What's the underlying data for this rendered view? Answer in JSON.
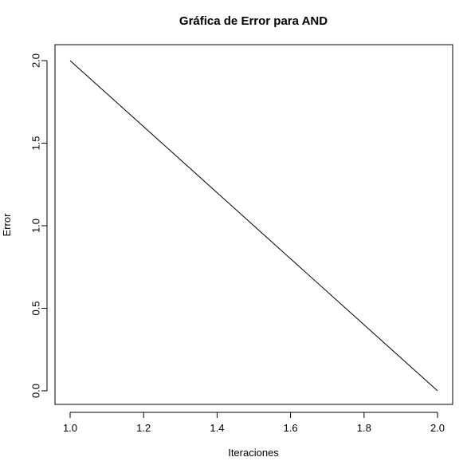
{
  "chart_data": {
    "type": "line",
    "title": "Gráfica de Error para AND",
    "xlabel": "Iteraciones",
    "ylabel": "Error",
    "x": [
      1,
      2
    ],
    "series": [
      {
        "values": [
          2,
          0
        ],
        "color": "#000000"
      }
    ],
    "xlim": [
      1,
      2
    ],
    "ylim": [
      0,
      2
    ],
    "x_ticks": [
      1.0,
      1.2,
      1.4,
      1.6,
      1.8,
      2.0
    ],
    "x_tick_labels": [
      "1.0",
      "1.2",
      "1.4",
      "1.6",
      "1.8",
      "2.0"
    ],
    "y_ticks": [
      0.0,
      0.5,
      1.0,
      1.5,
      2.0
    ],
    "y_tick_labels": [
      "0.0",
      "0.5",
      "1.0",
      "1.5",
      "2.0"
    ],
    "grid": false,
    "legend": "none"
  }
}
